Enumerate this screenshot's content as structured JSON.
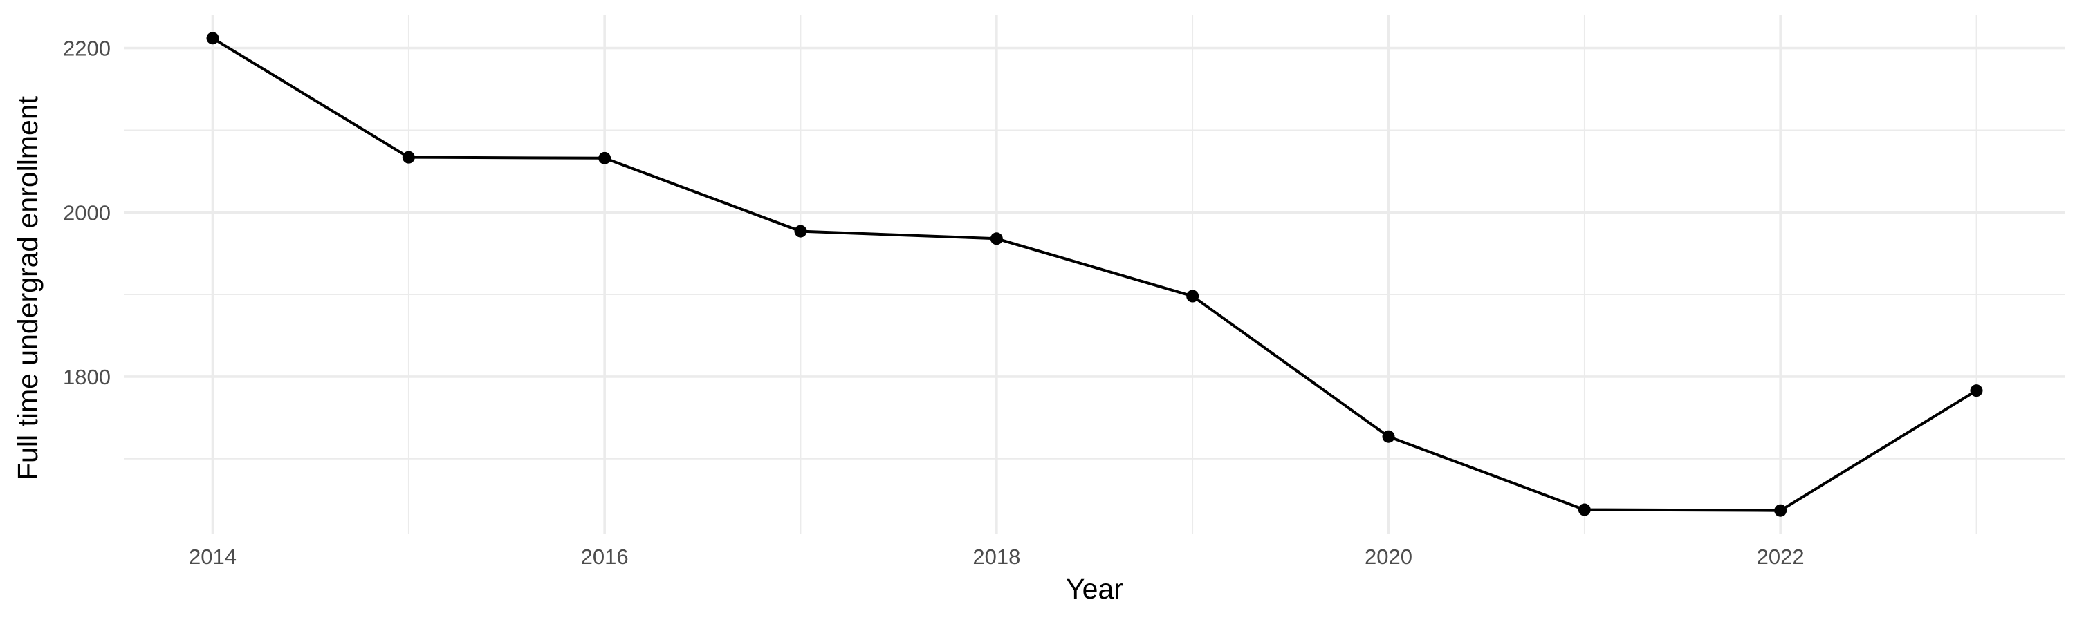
{
  "chart_data": {
    "type": "line",
    "title": "",
    "xlabel": "Year",
    "ylabel": "Full time undergrad enrollment",
    "x": [
      2014,
      2015,
      2016,
      2017,
      2018,
      2019,
      2020,
      2021,
      2022,
      2023
    ],
    "series": [
      {
        "values": [
          2212,
          2067,
          2066,
          1977,
          1968,
          1898,
          1727,
          1638,
          1637,
          1783
        ]
      }
    ],
    "xlim": [
      2013.55,
      2023.45
    ],
    "ylim": [
      1609,
      2240
    ],
    "x_ticks": [
      2014,
      2016,
      2018,
      2020,
      2022
    ],
    "x_tick_labels": [
      "2014",
      "2016",
      "2018",
      "2020",
      "2022"
    ],
    "x_minor_ticks": [
      2015,
      2017,
      2019,
      2021,
      2023
    ],
    "y_ticks": [
      1800,
      2000,
      2200
    ],
    "y_tick_labels": [
      "1800",
      "2000",
      "2200"
    ],
    "y_minor_ticks": [
      1700,
      1900,
      2100
    ],
    "grid": true,
    "legend": "none",
    "colors": {
      "line": "#000000",
      "point": "#000000",
      "grid": "#ebebeb",
      "tick_text": "#4d4d4d",
      "axis_title": "#000000",
      "background": "#ffffff"
    }
  }
}
